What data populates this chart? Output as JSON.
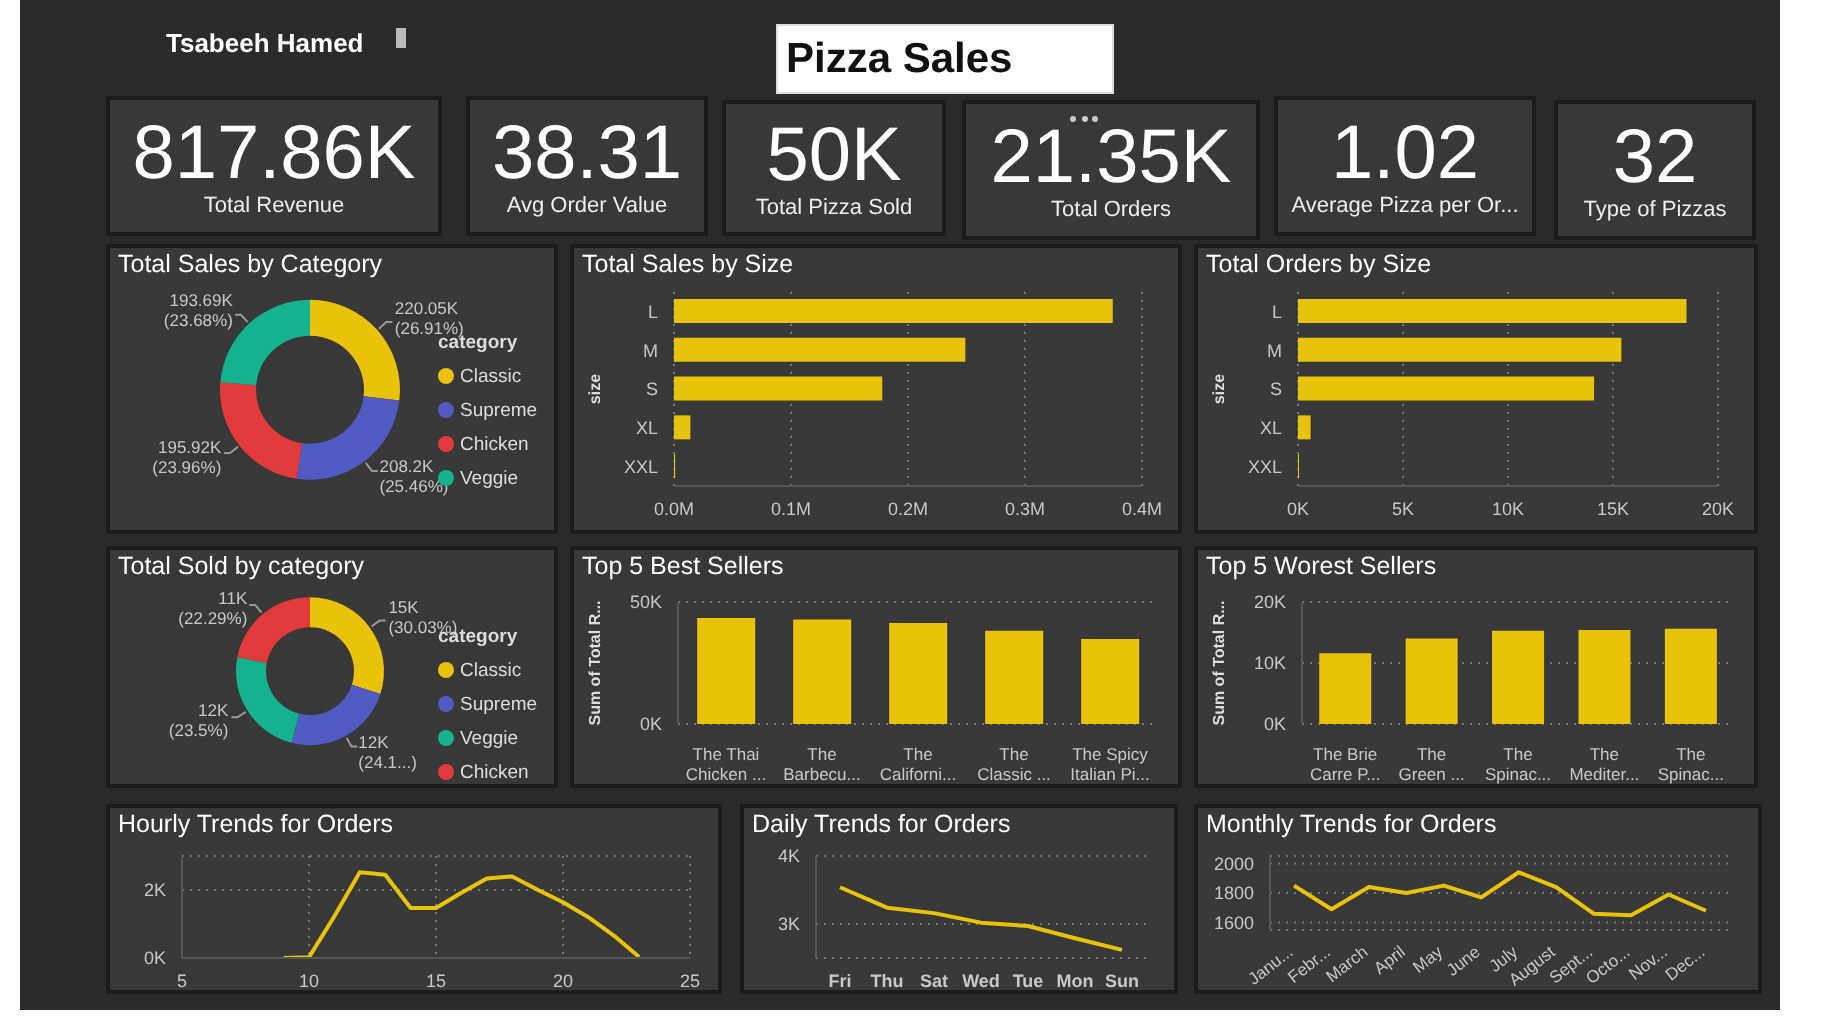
{
  "chart_data": [
    {
      "type": "other",
      "title": "Pizza Sales",
      "annotations": [
        "Tsabeeh Hamed"
      ]
    },
    {
      "type": "other",
      "title": "Total Revenue",
      "annotations": [
        "817.86K"
      ]
    },
    {
      "type": "other",
      "title": "Avg Order Value",
      "annotations": [
        "38.31"
      ]
    },
    {
      "type": "other",
      "title": "Total Pizza Sold",
      "annotations": [
        "50K"
      ]
    },
    {
      "type": "other",
      "title": "Total Orders",
      "annotations": [
        "21.35K"
      ]
    },
    {
      "type": "other",
      "title": "Average Pizza per Or...",
      "annotations": [
        "1.02"
      ]
    },
    {
      "type": "other",
      "title": "Type of Pizzas",
      "annotations": [
        "32"
      ]
    },
    {
      "type": "donut",
      "title": "Total Sales by Category",
      "categories": [
        "Classic",
        "Supreme",
        "Chicken",
        "Veggie"
      ],
      "values": [
        220050,
        208200,
        195920,
        193690
      ],
      "colors": [
        "#e9c20b",
        "#4f5bc0",
        "#e23a3a",
        "#14b28d"
      ],
      "value_labels": [
        "220.05K (26.91%)",
        "208.2K (25.46%)",
        "195.92K (23.96%)",
        "193.69K (23.68%)"
      ],
      "legend": "right",
      "legend_title": "category"
    },
    {
      "type": "bar",
      "orientation": "horizontal",
      "title": "Total Sales by Size",
      "ylabel": "size",
      "categories": [
        "L",
        "M",
        "S",
        "XL",
        "XXL"
      ],
      "values": [
        375000,
        249000,
        178000,
        14000,
        1000
      ],
      "color": "#e9c20b",
      "xlim": [
        0,
        400000
      ],
      "xticks": [
        {
          "value": 0,
          "label": "0.0M"
        },
        {
          "value": 100000,
          "label": "0.1M"
        },
        {
          "value": 200000,
          "label": "0.2M"
        },
        {
          "value": 300000,
          "label": "0.3M"
        },
        {
          "value": 400000,
          "label": "0.4M"
        }
      ],
      "grid": "x"
    },
    {
      "type": "bar",
      "orientation": "horizontal",
      "title": "Total Orders by Size",
      "ylabel": "size",
      "categories": [
        "L",
        "M",
        "S",
        "XL",
        "XXL"
      ],
      "values": [
        18500,
        15400,
        14100,
        600,
        50
      ],
      "color": "#e9c20b",
      "xlim": [
        0,
        20000
      ],
      "xticks": [
        {
          "value": 0,
          "label": "0K"
        },
        {
          "value": 5000,
          "label": "5K"
        },
        {
          "value": 10000,
          "label": "10K"
        },
        {
          "value": 15000,
          "label": "15K"
        },
        {
          "value": 20000,
          "label": "20K"
        }
      ],
      "grid": "x"
    },
    {
      "type": "donut",
      "title": "Total Sold by category",
      "categories": [
        "Classic",
        "Supreme",
        "Veggie",
        "Chicken"
      ],
      "values": [
        15000,
        12000,
        12000,
        11000
      ],
      "colors": [
        "#e9c20b",
        "#4f5bc0",
        "#14b28d",
        "#e23a3a"
      ],
      "value_labels": [
        "15K (30.03%)",
        "12K (24.1...)",
        "12K (23.5%)",
        "11K (22.29%)"
      ],
      "legend": "right",
      "legend_title": "category"
    },
    {
      "type": "bar",
      "title": "Top 5 Best Sellers",
      "ylabel": "Sum of Total R...",
      "categories": [
        "The Thai Chicken ...",
        "The Barbecu...",
        "The Californi...",
        "The Classic ...",
        "The Spicy Italian Pi..."
      ],
      "values": [
        43400,
        42800,
        41400,
        38200,
        34800
      ],
      "color": "#e9c20b",
      "ylim": [
        0,
        50000
      ],
      "yticks": [
        {
          "value": 0,
          "label": "0K"
        },
        {
          "value": 50000,
          "label": "50K"
        }
      ],
      "grid": "y"
    },
    {
      "type": "bar",
      "title": "Top 5 Worest Sellers",
      "ylabel": "Sum of Total R...",
      "categories": [
        "The Brie Carre P...",
        "The Green ...",
        "The Spinac...",
        "The Mediter...",
        "The Spinac..."
      ],
      "values": [
        11600,
        14000,
        15300,
        15400,
        15600
      ],
      "color": "#e9c20b",
      "ylim": [
        0,
        20000
      ],
      "yticks": [
        {
          "value": 0,
          "label": "0K"
        },
        {
          "value": 10000,
          "label": "10K"
        },
        {
          "value": 20000,
          "label": "20K"
        }
      ],
      "grid": "y"
    },
    {
      "type": "line",
      "title": "Hourly Trends for Orders",
      "x": [
        9,
        10,
        11,
        12,
        13,
        14,
        15,
        16,
        17,
        18,
        19,
        20,
        21,
        22,
        23
      ],
      "values": [
        0,
        20,
        1230,
        2520,
        2450,
        1470,
        1470,
        1920,
        2340,
        2400,
        2010,
        1640,
        1200,
        660,
        30
      ],
      "color": "#e9c20b",
      "xlim": [
        5,
        25
      ],
      "xticks": [
        5,
        10,
        15,
        20,
        25
      ],
      "ylim": [
        0,
        3000
      ],
      "yticks": [
        {
          "value": 0,
          "label": "0K"
        },
        {
          "value": 2000,
          "label": "2K"
        }
      ],
      "grid": true
    },
    {
      "type": "line",
      "title": "Daily Trends for Orders",
      "categories": [
        "Fri",
        "Thu",
        "Sat",
        "Wed",
        "Tue",
        "Mon",
        "Sun"
      ],
      "values": [
        3540,
        3240,
        3160,
        3020,
        2970,
        2790,
        2620
      ],
      "color": "#e9c20b",
      "ylim": [
        2500,
        4000
      ],
      "yticks": [
        {
          "value": 3000,
          "label": "3K"
        },
        {
          "value": 4000,
          "label": "4K"
        }
      ],
      "grid": "y"
    },
    {
      "type": "line",
      "title": "Monthly Trends for Orders",
      "categories": [
        "Janu...",
        "Febr...",
        "March",
        "April",
        "May",
        "June",
        "July",
        "August",
        "Sept...",
        "Octo...",
        "Nov...",
        "Dec..."
      ],
      "values": [
        1850,
        1690,
        1840,
        1800,
        1850,
        1770,
        1940,
        1840,
        1660,
        1650,
        1790,
        1680
      ],
      "color": "#e9c20b",
      "ylim": [
        1550,
        2050
      ],
      "yticks": [
        1600,
        1800,
        2000
      ],
      "grid": "y"
    }
  ]
}
